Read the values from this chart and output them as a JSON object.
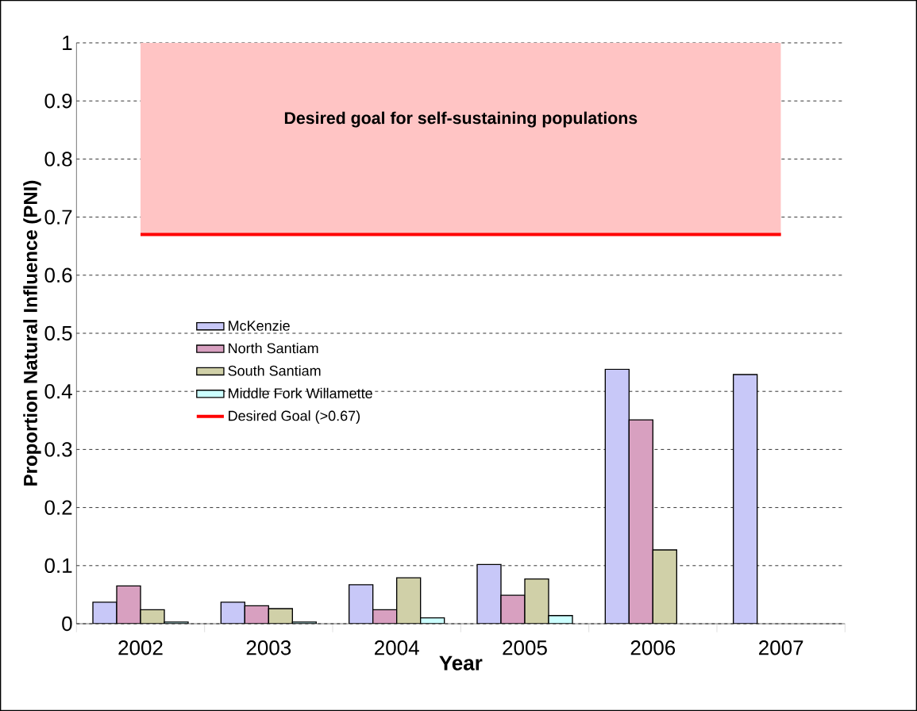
{
  "chart_data": {
    "type": "bar",
    "xlabel": "Year",
    "ylabel": "Proportion Natural Influence (PNI)",
    "categories": [
      "2002",
      "2003",
      "2004",
      "2005",
      "2006",
      "2007"
    ],
    "series": [
      {
        "name": "McKenzie",
        "color": "#c8c8f8",
        "values": [
          0.037,
          0.037,
          0.067,
          0.102,
          0.438,
          0.429
        ]
      },
      {
        "name": "North Santiam",
        "color": "#d8a0c0",
        "values": [
          0.065,
          0.031,
          0.024,
          0.049,
          0.351,
          null
        ]
      },
      {
        "name": "South Santiam",
        "color": "#d0d0a8",
        "values": [
          0.024,
          0.026,
          0.079,
          0.077,
          0.127,
          null
        ]
      },
      {
        "name": "Middle Fork Willamette",
        "color": "#ccffff",
        "values": [
          0.003,
          0.003,
          0.01,
          0.014,
          null,
          null
        ]
      }
    ],
    "ylim": [
      0,
      1
    ],
    "yticks": [
      0,
      0.1,
      0.2,
      0.3,
      0.4,
      0.5,
      0.6,
      0.7,
      0.8,
      0.9,
      1
    ],
    "grid": "y",
    "legend": "left",
    "ref_lines": [
      {
        "axis": "y",
        "value": 0.67,
        "label": "Desired Goal (>0.67)",
        "color": "#ff0000",
        "line_style": "solid"
      }
    ],
    "bands": [
      {
        "axis": "y",
        "from": 0.67,
        "to": 1,
        "label": "Desired goal for self-sustaining populations",
        "color": "#ffc4c4"
      }
    ]
  }
}
